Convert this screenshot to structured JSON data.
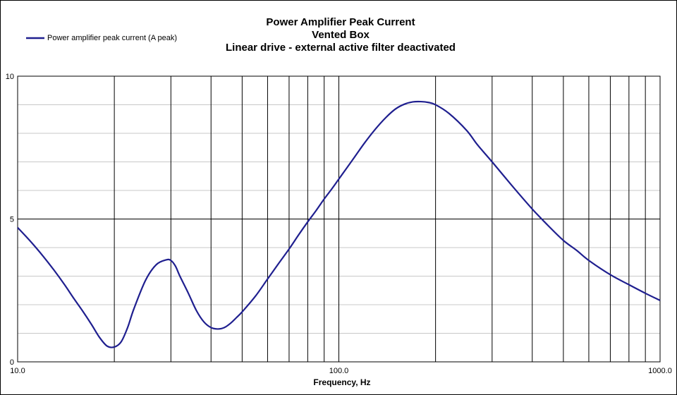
{
  "chart_data": {
    "type": "line",
    "title_lines": [
      "Power Amplifier Peak Current",
      "Vented Box",
      "Linear drive - external active filter deactivated"
    ],
    "xlabel": "Frequency, Hz",
    "ylabel": "",
    "x_scale": "log",
    "xlim": [
      10,
      1000
    ],
    "ylim": [
      0,
      10
    ],
    "x_tick_labels": [
      {
        "value": 10,
        "label": "10.0"
      },
      {
        "value": 100,
        "label": "100.0"
      },
      {
        "value": 1000,
        "label": "1000.0"
      }
    ],
    "y_tick_labels": [
      {
        "value": 0,
        "label": "0"
      },
      {
        "value": 5,
        "label": "5"
      },
      {
        "value": 10,
        "label": "10"
      }
    ],
    "x_gridlines": [
      10,
      20,
      30,
      40,
      50,
      60,
      70,
      80,
      90,
      100,
      200,
      300,
      400,
      500,
      600,
      700,
      800,
      900,
      1000
    ],
    "y_major_gridlines": [
      0,
      5,
      10
    ],
    "y_minor_gridlines": [
      1,
      2,
      3,
      4,
      6,
      7,
      8,
      9
    ],
    "grid": true,
    "legend_position": "top-left",
    "series": [
      {
        "name": "Power amplifier peak current (A peak)",
        "color": "#1f1f8f",
        "x": [
          10,
          11,
          12,
          13,
          14,
          15,
          16,
          17,
          18,
          19,
          20,
          21,
          22,
          23,
          25,
          27,
          29,
          30,
          31,
          32,
          34,
          36,
          38,
          40,
          42,
          44,
          46,
          48,
          50,
          55,
          60,
          65,
          70,
          75,
          80,
          85,
          90,
          95,
          100,
          110,
          120,
          130,
          140,
          150,
          160,
          170,
          180,
          190,
          200,
          220,
          250,
          270,
          300,
          350,
          400,
          450,
          500,
          550,
          600,
          700,
          800,
          900,
          1000
        ],
        "y": [
          4.7,
          4.2,
          3.7,
          3.2,
          2.7,
          2.2,
          1.75,
          1.3,
          0.85,
          0.55,
          0.52,
          0.7,
          1.2,
          1.85,
          2.85,
          3.4,
          3.57,
          3.55,
          3.35,
          3.0,
          2.4,
          1.8,
          1.4,
          1.2,
          1.15,
          1.2,
          1.35,
          1.55,
          1.75,
          2.3,
          2.9,
          3.45,
          3.95,
          4.45,
          4.9,
          5.3,
          5.7,
          6.05,
          6.4,
          7.05,
          7.65,
          8.15,
          8.55,
          8.85,
          9.02,
          9.1,
          9.11,
          9.08,
          9.0,
          8.7,
          8.1,
          7.6,
          7.0,
          6.1,
          5.35,
          4.75,
          4.25,
          3.9,
          3.55,
          3.05,
          2.7,
          2.4,
          2.15
        ]
      }
    ]
  }
}
